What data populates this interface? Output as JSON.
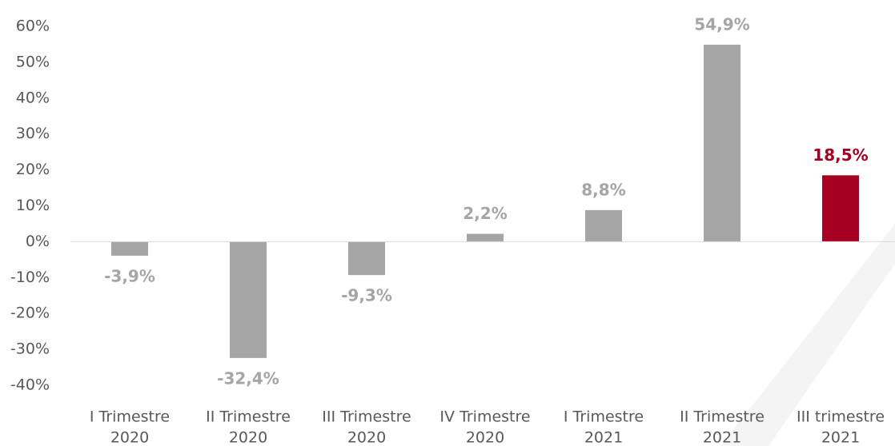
{
  "chart_data": {
    "type": "bar",
    "categories": [
      [
        "I Trimestre",
        "2020"
      ],
      [
        "II Trimestre",
        "2020"
      ],
      [
        "III Trimestre",
        "2020"
      ],
      [
        "IV Trimestre",
        "2020"
      ],
      [
        "I Trimestre",
        "2021"
      ],
      [
        "II Trimestre",
        "2021"
      ],
      [
        "III trimestre",
        "2021"
      ]
    ],
    "values": [
      -3.9,
      -32.4,
      -9.3,
      2.2,
      8.8,
      54.9,
      18.5
    ],
    "value_labels": [
      "-3,9%",
      "-32,4%",
      "-9,3%",
      "2,2%",
      "8,8%",
      "54,9%",
      "18,5%"
    ],
    "colors": [
      "#a5a5a5",
      "#a5a5a5",
      "#a5a5a5",
      "#a5a5a5",
      "#a5a5a5",
      "#a5a5a5",
      "#a50021"
    ],
    "ylim": [
      -40,
      60
    ],
    "yticks": [
      {
        "value": -40,
        "label": "-40%"
      },
      {
        "value": -30,
        "label": "-30%"
      },
      {
        "value": -20,
        "label": "-20%"
      },
      {
        "value": -10,
        "label": "-10%"
      },
      {
        "value": 0,
        "label": "0%"
      },
      {
        "value": 10,
        "label": "10%"
      },
      {
        "value": 20,
        "label": "20%"
      },
      {
        "value": 30,
        "label": "30%"
      },
      {
        "value": 40,
        "label": "40%"
      },
      {
        "value": 50,
        "label": "50%"
      },
      {
        "value": 60,
        "label": "60%"
      }
    ],
    "grid": false
  }
}
